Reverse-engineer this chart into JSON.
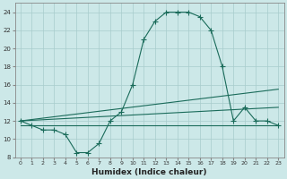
{
  "xlabel": "Humidex (Indice chaleur)",
  "ylabel": "",
  "bg_color": "#cce8e8",
  "line_color": "#1a6b5a",
  "grid_color": "#b0d4d4",
  "xlim": [
    -0.5,
    23.5
  ],
  "ylim": [
    8,
    25
  ],
  "xticks": [
    0,
    1,
    2,
    3,
    4,
    5,
    6,
    7,
    8,
    9,
    10,
    11,
    12,
    13,
    14,
    15,
    16,
    17,
    18,
    19,
    20,
    21,
    22,
    23
  ],
  "yticks": [
    8,
    10,
    12,
    14,
    16,
    18,
    20,
    22,
    24
  ],
  "curve1_x": [
    0,
    1,
    2,
    3,
    4,
    5,
    6,
    7,
    8,
    9,
    10,
    11,
    12,
    13,
    14,
    15,
    16,
    17,
    18,
    19,
    20,
    21,
    22,
    23
  ],
  "curve1_y": [
    12,
    11.5,
    11,
    11,
    10.5,
    8.5,
    8.5,
    9.5,
    12,
    13,
    16,
    21,
    23,
    24,
    24,
    24,
    23.5,
    22,
    18,
    12,
    13.5,
    12,
    12,
    11.5
  ],
  "curve2_x": [
    0,
    23
  ],
  "curve2_y": [
    12,
    15.5
  ],
  "curve3_x": [
    0,
    23
  ],
  "curve3_y": [
    12,
    13.5
  ],
  "curve4_x": [
    0,
    23
  ],
  "curve4_y": [
    11.5,
    11.5
  ]
}
